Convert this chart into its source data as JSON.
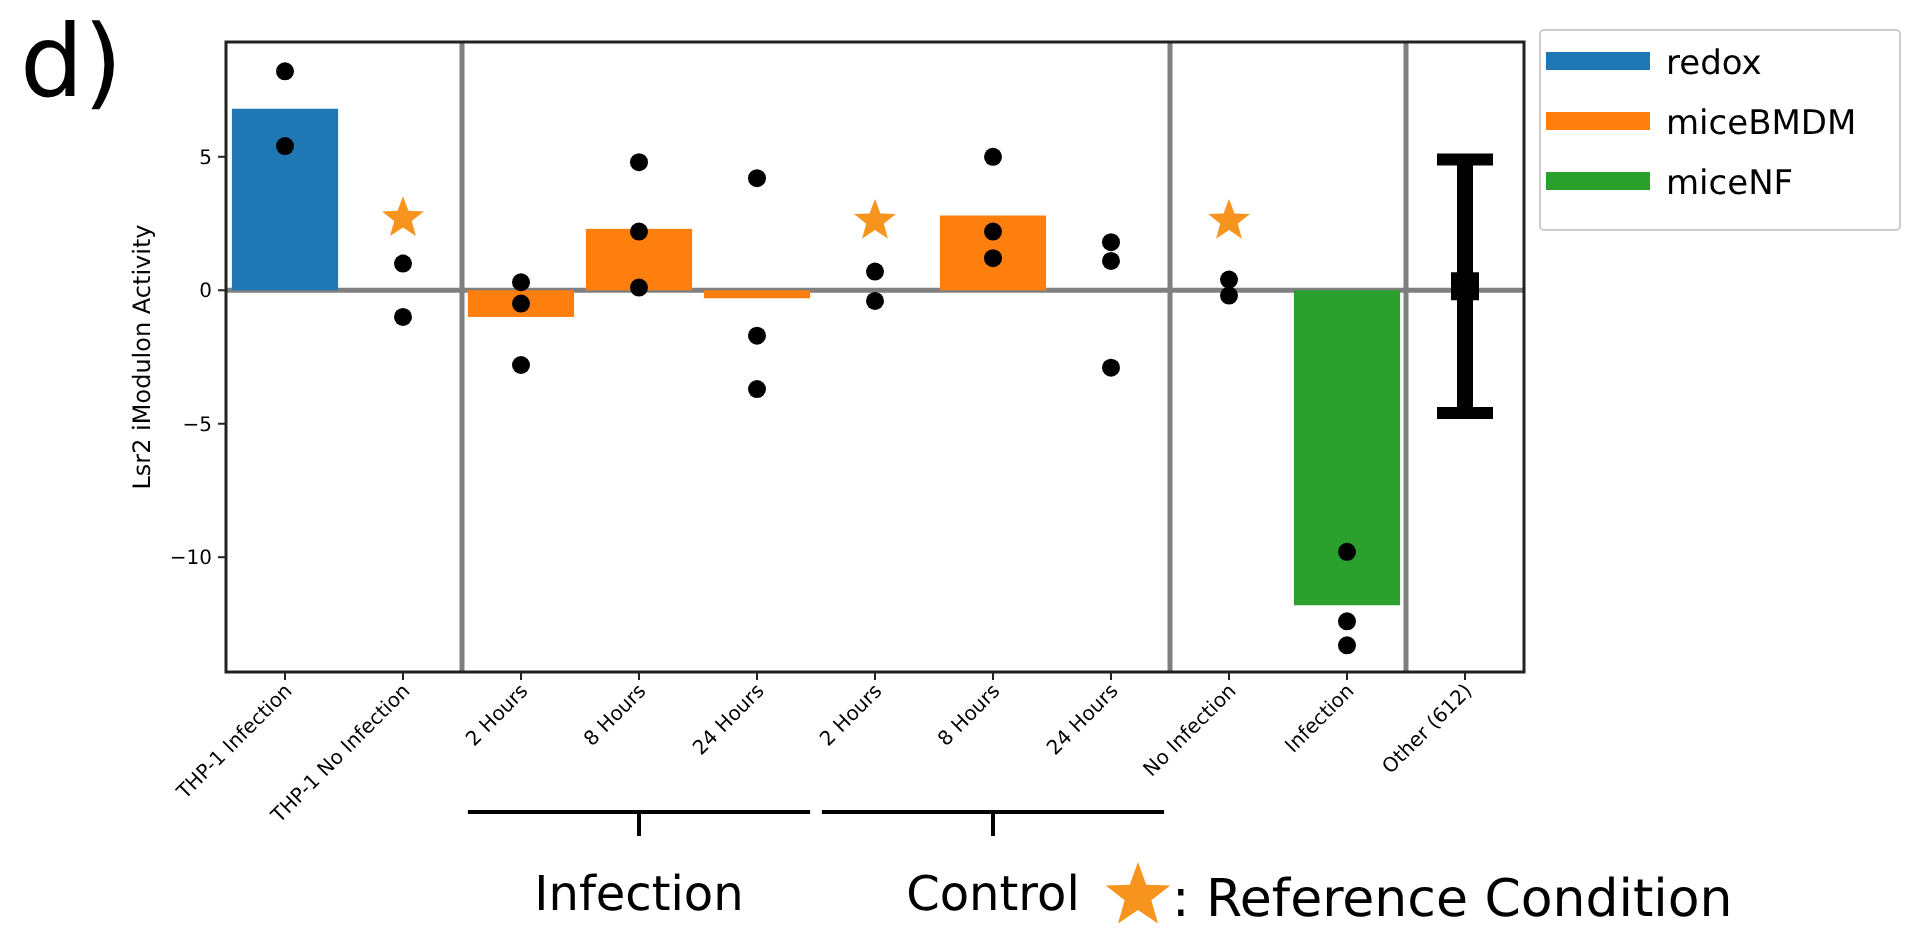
{
  "chart_data": {
    "type": "bar",
    "ylabel": "Lsr2 iModulon Activity",
    "categories": [
      "THP-1 Infection",
      "THP-1 No Infection",
      "2 Hours",
      "8 Hours",
      "24 Hours",
      "2 Hours",
      "8 Hours",
      "24 Hours",
      "No Infection",
      "Infection",
      "Other (612)"
    ],
    "series": [
      {
        "name": "redox",
        "color": "#1f77b4",
        "values": [
          6.8,
          null,
          null,
          null,
          null,
          null,
          null,
          null,
          null,
          null,
          null
        ]
      },
      {
        "name": "miceBMDM",
        "color": "#ff7f0e",
        "values": [
          null,
          null,
          -1.0,
          2.3,
          -0.3,
          null,
          2.8,
          null,
          null,
          null,
          null
        ]
      },
      {
        "name": "miceNF",
        "color": "#2ca02c",
        "values": [
          null,
          null,
          null,
          null,
          null,
          null,
          null,
          null,
          null,
          -11.8,
          null
        ]
      },
      {
        "type": "scatter",
        "color": "#000000",
        "marker": "square",
        "values": [
          null,
          null,
          null,
          null,
          null,
          null,
          null,
          null,
          null,
          null,
          0.15
        ],
        "errors": [
          null,
          null,
          null,
          null,
          null,
          null,
          null,
          null,
          null,
          null,
          [
            -4.6,
            4.9
          ]
        ]
      },
      {
        "type": "scatter",
        "color": "#000000",
        "marker": "circle",
        "values": [
          8.2,
          1.0,
          0.3,
          4.8,
          4.2,
          0.7,
          5.0,
          1.8,
          0.4,
          -9.8,
          null
        ]
      },
      {
        "type": "scatter",
        "color": "#000000",
        "marker": "circle",
        "values": [
          5.4,
          -1.0,
          -0.5,
          2.2,
          -1.7,
          -0.4,
          2.2,
          1.1,
          -0.2,
          -12.4,
          null
        ]
      },
      {
        "type": "scatter",
        "color": "#000000",
        "marker": "circle",
        "values": [
          null,
          null,
          -2.8,
          0.1,
          -3.7,
          null,
          1.2,
          -2.9,
          null,
          -13.3,
          null
        ]
      },
      {
        "type": "scatter",
        "color": "#f7941d",
        "marker": "star",
        "values": [
          null,
          2.7,
          null,
          null,
          null,
          2.6,
          null,
          null,
          2.6,
          null,
          null
        ]
      }
    ],
    "ylim": [
      -14.3,
      9.3
    ],
    "yticks": [
      {
        "value": -10,
        "label": "−10"
      },
      {
        "value": -5,
        "label": "−5"
      },
      0,
      5
    ],
    "ref_lines": [
      {
        "axis": "y",
        "value": 0,
        "color": "#808080"
      }
    ],
    "annotations": [
      "d)",
      "Infection",
      "Control",
      ": Reference Condition"
    ],
    "grid": false,
    "legend": "top right"
  }
}
